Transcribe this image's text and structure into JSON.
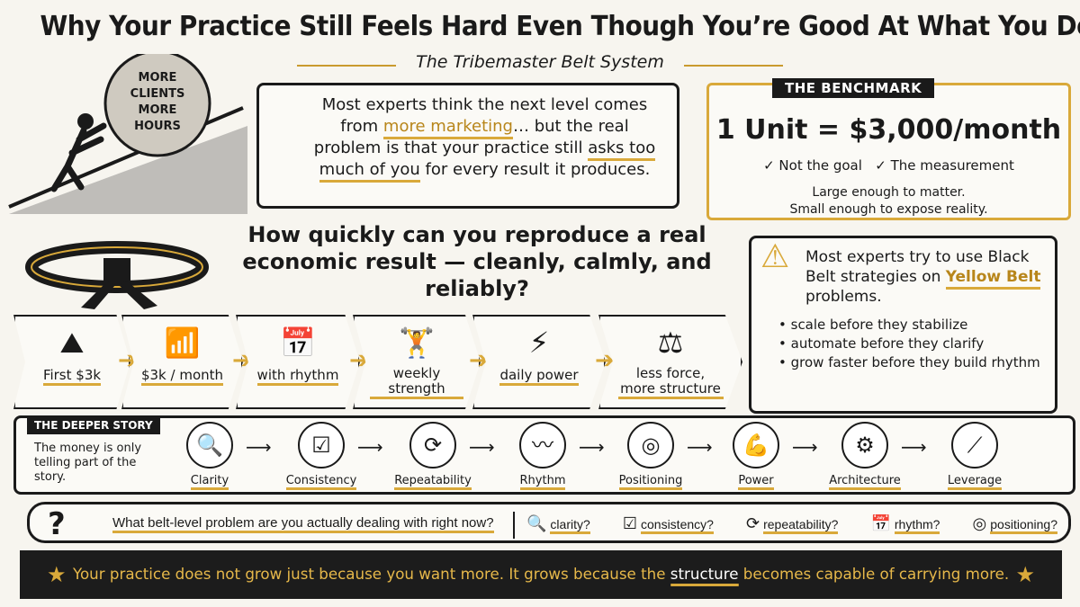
{
  "title": "Why Your Practice Still Feels Hard Even Though You’re Good At What You Do",
  "subtitle": "The Tribemaster Belt System",
  "boulder": {
    "text": "MORE CLIENTS MORE HOURS"
  },
  "main_box": {
    "line1": "Most experts think the next level comes from ",
    "highlight1": "more marketing",
    "line2": "… but the real problem is that your practice still ",
    "highlight2": "asks too much of you",
    "line3": " for every result it produces."
  },
  "benchmark": {
    "tag": "THE BENCHMARK",
    "unit": "1 Unit = $3,000/month",
    "check1": "✓ Not the goal",
    "check2": "✓ The measurement",
    "desc1": "Large enough to matter.",
    "desc2": "Small enough to expose reality."
  },
  "question": "How quickly can you reproduce a real economic result — cleanly, calmly, and reliably?",
  "warning": {
    "pre": "Most experts try to use Black Belt strategies on ",
    "highlight": "Yellow Belt",
    "post": " problems.",
    "bullets": [
      "scale before they stabilize",
      "automate before they clarify",
      "grow faster before they build rhythm"
    ]
  },
  "steps": [
    {
      "icon": "mountain-flag",
      "glyph": "⛰",
      "label": "First $3k"
    },
    {
      "icon": "bar-chart-growth",
      "glyph": "📶",
      "label": "$3k / month"
    },
    {
      "icon": "calendar-check",
      "glyph": "📅",
      "label": "with rhythm"
    },
    {
      "icon": "dumbbell",
      "glyph": "🏋",
      "label": "weekly strength"
    },
    {
      "icon": "lightning-bolt",
      "glyph": "⚡",
      "label": "daily power"
    },
    {
      "icon": "balance-scale",
      "glyph": "⚖",
      "label": "less force, more structure"
    }
  ],
  "deeper": {
    "tag": "THE DEEPER STORY",
    "text": "The money is only telling part of the story.",
    "stages": [
      {
        "icon": "magnifier",
        "glyph": "🔍",
        "label": "Clarity"
      },
      {
        "icon": "checkbox",
        "glyph": "☑",
        "label": "Consistency"
      },
      {
        "icon": "refresh",
        "glyph": "⟳",
        "label": "Repeatability"
      },
      {
        "icon": "heartbeat",
        "glyph": "〰",
        "label": "Rhythm"
      },
      {
        "icon": "target",
        "glyph": "◎",
        "label": "Positioning"
      },
      {
        "icon": "flexed-arm",
        "glyph": "💪",
        "label": "Power"
      },
      {
        "icon": "blueprint-gear",
        "glyph": "⚙",
        "label": "Architecture"
      },
      {
        "icon": "lever",
        "glyph": "⟋",
        "label": "Leverage"
      }
    ]
  },
  "qbar": {
    "question": "What belt-level problem are you actually dealing with right now?",
    "items": [
      {
        "icon": "magnifier",
        "glyph": "🔍",
        "label": "clarity?"
      },
      {
        "icon": "checkbox",
        "glyph": "☑",
        "label": "consistency?"
      },
      {
        "icon": "refresh",
        "glyph": "⟳",
        "label": "repeatability?"
      },
      {
        "icon": "calendar",
        "glyph": "📅",
        "label": "rhythm?"
      },
      {
        "icon": "target",
        "glyph": "◎",
        "label": "positioning?"
      }
    ]
  },
  "banner": {
    "part1": "Your practice does not grow just because you want more.  It grows because the ",
    "highlight": "structure",
    "part2": " becomes capable of carrying more."
  },
  "colors": {
    "accent": "#d9a93a",
    "ink": "#1a1a1a",
    "background": "#f7f5ef",
    "banner": "#1c1c1c"
  }
}
